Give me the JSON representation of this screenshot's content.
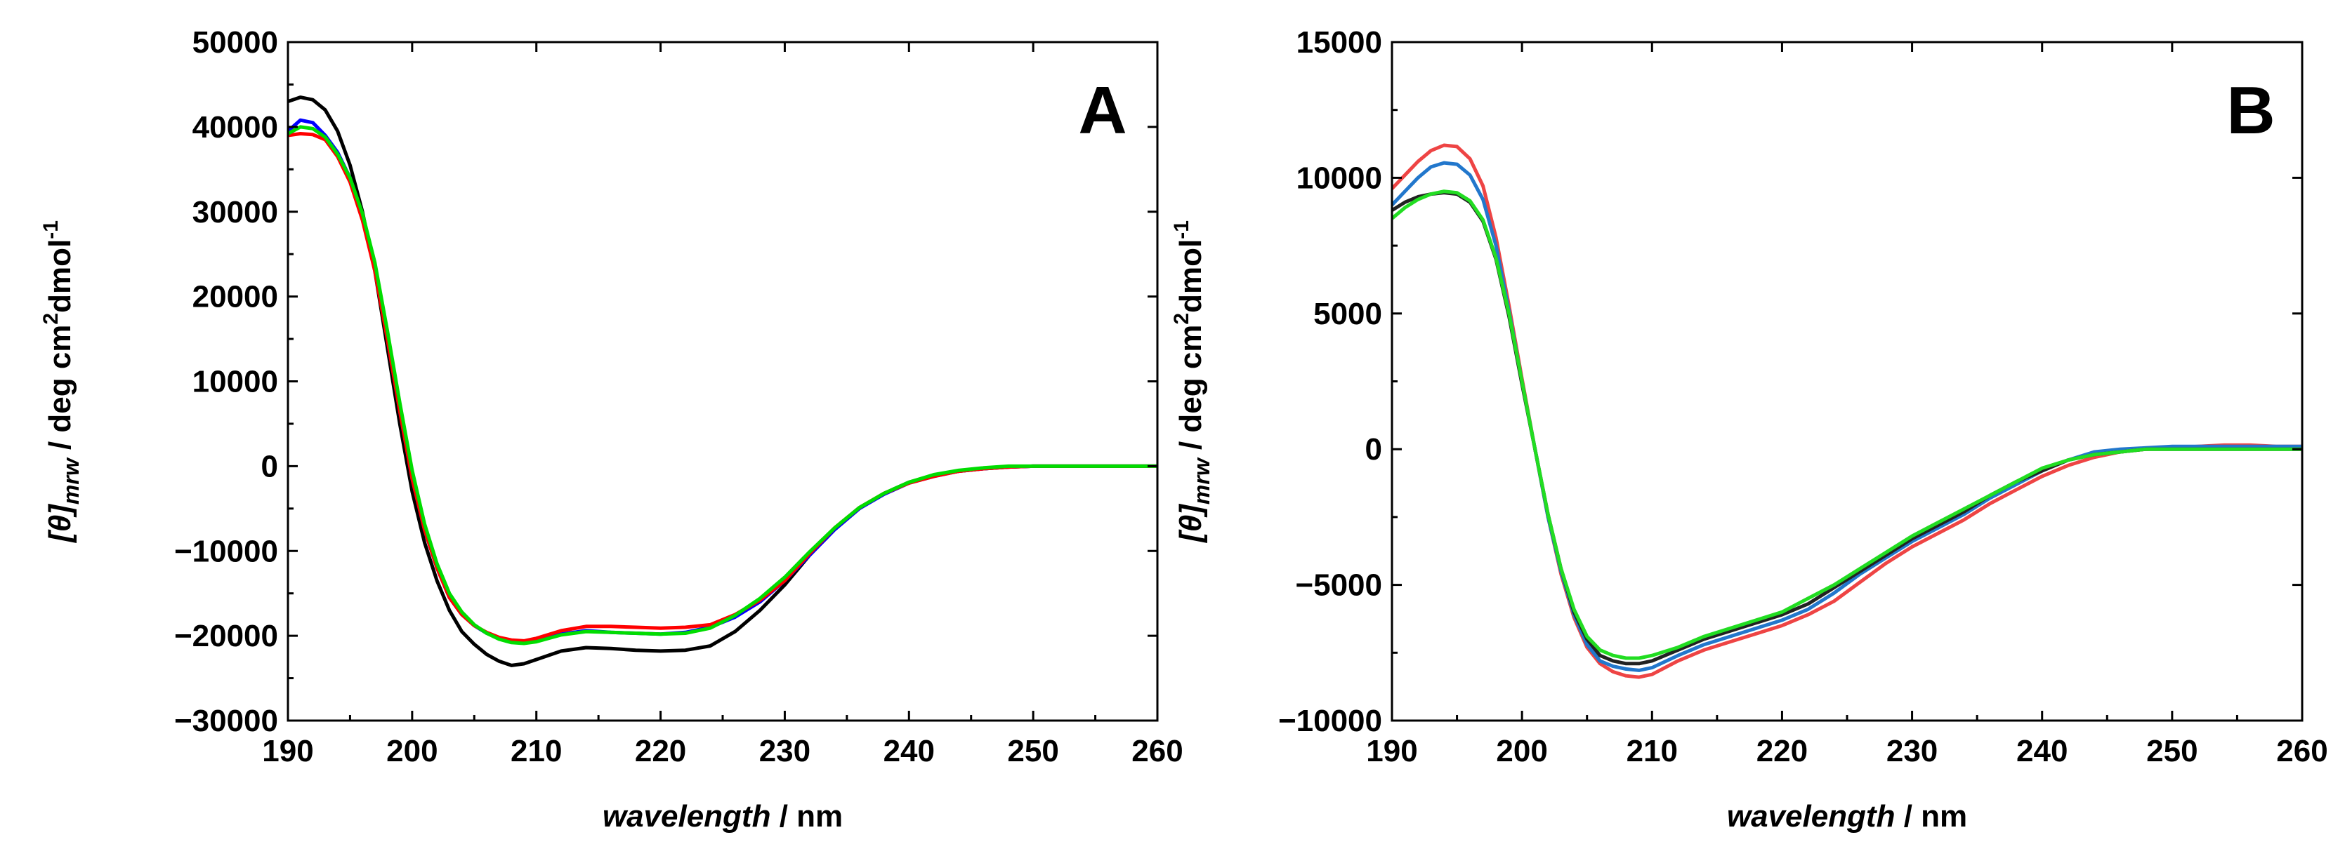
{
  "chart_data": [
    {
      "type": "line",
      "panel_label": "A",
      "xlabel": {
        "italic": "wavelength",
        "rest": " / nm"
      },
      "ylabel": {
        "italic": "[θ]",
        "subscript": "mrw",
        "rest": " / deg cm",
        "sup2": "2",
        "unit2": "dmol",
        "sup3": "-1"
      },
      "xlim": [
        190,
        260
      ],
      "ylim": [
        -30000,
        50000
      ],
      "xticks": [
        190,
        200,
        210,
        220,
        230,
        240,
        250,
        260
      ],
      "yticks": [
        -30000,
        -20000,
        -10000,
        0,
        10000,
        20000,
        30000,
        40000,
        50000
      ],
      "ytick_labels": [
        "−30000",
        "−20000",
        "−10000",
        "0",
        "10000",
        "20000",
        "30000",
        "40000",
        "50000"
      ],
      "series": [
        {
          "name": "black",
          "color": "#000000",
          "x": [
            190,
            191,
            192,
            193,
            194,
            195,
            196,
            197,
            198,
            199,
            200,
            201,
            202,
            203,
            204,
            205,
            206,
            207,
            208,
            209,
            210,
            212,
            214,
            216,
            218,
            220,
            222,
            224,
            226,
            228,
            230,
            232,
            234,
            236,
            238,
            240,
            242,
            244,
            246,
            248,
            250,
            255,
            260
          ],
          "y": [
            43000,
            43500,
            43200,
            42000,
            39500,
            35500,
            30000,
            23000,
            14000,
            5000,
            -3000,
            -9000,
            -13500,
            -17000,
            -19500,
            -21000,
            -22200,
            -23000,
            -23500,
            -23300,
            -22800,
            -21800,
            -21400,
            -21500,
            -21700,
            -21800,
            -21700,
            -21200,
            -19500,
            -17000,
            -14000,
            -10500,
            -7500,
            -5000,
            -3200,
            -1900,
            -1100,
            -600,
            -300,
            -100,
            0,
            0,
            0
          ]
        },
        {
          "name": "blue",
          "color": "#0000ff",
          "x": [
            190,
            191,
            192,
            193,
            194,
            195,
            196,
            197,
            198,
            199,
            200,
            201,
            202,
            203,
            204,
            205,
            206,
            207,
            208,
            209,
            210,
            212,
            214,
            216,
            218,
            220,
            222,
            224,
            226,
            228,
            230,
            232,
            234,
            236,
            238,
            240,
            242,
            244,
            246,
            248,
            250,
            255,
            260
          ],
          "y": [
            39500,
            40800,
            40500,
            39000,
            37000,
            34000,
            29500,
            23500,
            15000,
            6500,
            -1500,
            -7500,
            -12000,
            -15500,
            -17500,
            -18800,
            -19700,
            -20300,
            -20700,
            -20800,
            -20500,
            -19800,
            -19400,
            -19600,
            -19700,
            -19800,
            -19600,
            -19000,
            -17800,
            -16000,
            -13500,
            -10500,
            -7500,
            -5000,
            -3300,
            -2000,
            -1200,
            -600,
            -300,
            -100,
            0,
            0,
            0
          ]
        },
        {
          "name": "red",
          "color": "#ff0000",
          "x": [
            190,
            191,
            192,
            193,
            194,
            195,
            196,
            197,
            198,
            199,
            200,
            201,
            202,
            203,
            204,
            205,
            206,
            207,
            208,
            209,
            210,
            212,
            214,
            216,
            218,
            220,
            222,
            224,
            226,
            228,
            230,
            232,
            234,
            236,
            238,
            240,
            242,
            244,
            246,
            248,
            250,
            255,
            260
          ],
          "y": [
            39000,
            39200,
            39100,
            38500,
            36500,
            33500,
            29000,
            23000,
            15000,
            6500,
            -1500,
            -7500,
            -12000,
            -15500,
            -17500,
            -18800,
            -19600,
            -20200,
            -20500,
            -20600,
            -20300,
            -19400,
            -18900,
            -18900,
            -19000,
            -19100,
            -19000,
            -18700,
            -17500,
            -15800,
            -13500,
            -10300,
            -7300,
            -4900,
            -3200,
            -2000,
            -1200,
            -600,
            -300,
            -100,
            0,
            0,
            0
          ]
        },
        {
          "name": "green",
          "color": "#00dd00",
          "x": [
            190,
            191,
            192,
            193,
            194,
            195,
            196,
            197,
            198,
            199,
            200,
            201,
            202,
            203,
            204,
            205,
            206,
            207,
            208,
            209,
            210,
            212,
            214,
            216,
            218,
            220,
            222,
            224,
            226,
            228,
            230,
            232,
            234,
            236,
            238,
            240,
            242,
            244,
            246,
            248,
            250,
            255,
            260
          ],
          "y": [
            39200,
            40000,
            39800,
            38800,
            36800,
            34000,
            29800,
            24000,
            16000,
            7500,
            -500,
            -6800,
            -11500,
            -15000,
            -17200,
            -18700,
            -19700,
            -20400,
            -20800,
            -20900,
            -20700,
            -19900,
            -19500,
            -19600,
            -19700,
            -19800,
            -19700,
            -19100,
            -17600,
            -15600,
            -13100,
            -10100,
            -7300,
            -4900,
            -3200,
            -1900,
            -1000,
            -500,
            -200,
            0,
            0,
            0,
            0
          ]
        }
      ]
    },
    {
      "type": "line",
      "panel_label": "B",
      "xlabel": {
        "italic": "wavelength",
        "rest": " / nm"
      },
      "ylabel": {
        "italic": "[θ]",
        "subscript": "mrw",
        "rest": " / deg cm",
        "sup2": "2",
        "unit2": "dmol",
        "sup3": "-1"
      },
      "xlim": [
        190,
        260
      ],
      "ylim": [
        -10000,
        15000
      ],
      "xticks": [
        190,
        200,
        210,
        220,
        230,
        240,
        250,
        260
      ],
      "yticks": [
        -10000,
        -5000,
        0,
        5000,
        10000,
        15000
      ],
      "ytick_labels": [
        "−10000",
        "−5000",
        "0",
        "5000",
        "10000",
        "15000"
      ],
      "series": [
        {
          "name": "red",
          "color": "#ee4444",
          "x": [
            190,
            191,
            192,
            193,
            194,
            195,
            196,
            197,
            198,
            199,
            200,
            201,
            202,
            203,
            204,
            205,
            206,
            207,
            208,
            209,
            210,
            212,
            214,
            216,
            218,
            220,
            222,
            224,
            226,
            228,
            230,
            232,
            234,
            236,
            238,
            240,
            242,
            244,
            246,
            248,
            250,
            252,
            254,
            256,
            258,
            260
          ],
          "y": [
            9600,
            10100,
            10600,
            11000,
            11200,
            11150,
            10700,
            9700,
            7800,
            5300,
            2600,
            0,
            -2500,
            -4600,
            -6200,
            -7300,
            -7900,
            -8200,
            -8350,
            -8400,
            -8300,
            -7800,
            -7400,
            -7100,
            -6800,
            -6500,
            -6100,
            -5600,
            -4900,
            -4200,
            -3600,
            -3100,
            -2600,
            -2000,
            -1500,
            -1000,
            -600,
            -300,
            -100,
            0,
            50,
            100,
            150,
            150,
            100,
            100
          ]
        },
        {
          "name": "blue",
          "color": "#2277cc",
          "x": [
            190,
            191,
            192,
            193,
            194,
            195,
            196,
            197,
            198,
            199,
            200,
            201,
            202,
            203,
            204,
            205,
            206,
            207,
            208,
            209,
            210,
            212,
            214,
            216,
            218,
            220,
            222,
            224,
            226,
            228,
            230,
            232,
            234,
            236,
            238,
            240,
            242,
            244,
            246,
            248,
            250,
            252,
            254,
            256,
            258,
            260
          ],
          "y": [
            9000,
            9500,
            10000,
            10400,
            10550,
            10500,
            10100,
            9200,
            7500,
            5100,
            2500,
            0,
            -2500,
            -4500,
            -6100,
            -7200,
            -7800,
            -8000,
            -8100,
            -8150,
            -8050,
            -7600,
            -7200,
            -6900,
            -6600,
            -6300,
            -5900,
            -5300,
            -4600,
            -4000,
            -3400,
            -2900,
            -2400,
            -1800,
            -1300,
            -800,
            -400,
            -100,
            0,
            50,
            100,
            100,
            100,
            100,
            100,
            100
          ]
        },
        {
          "name": "black",
          "color": "#222222",
          "x": [
            190,
            191,
            192,
            193,
            194,
            195,
            196,
            197,
            198,
            199,
            200,
            201,
            202,
            203,
            204,
            205,
            206,
            207,
            208,
            209,
            210,
            212,
            214,
            216,
            218,
            220,
            222,
            224,
            226,
            228,
            230,
            232,
            234,
            236,
            238,
            240,
            242,
            244,
            246,
            248,
            250,
            252,
            254,
            256,
            258,
            260
          ],
          "y": [
            8800,
            9100,
            9300,
            9400,
            9450,
            9400,
            9100,
            8400,
            7000,
            4900,
            2400,
            0,
            -2400,
            -4400,
            -6000,
            -7000,
            -7600,
            -7800,
            -7900,
            -7900,
            -7800,
            -7400,
            -7000,
            -6700,
            -6400,
            -6100,
            -5700,
            -5100,
            -4500,
            -3900,
            -3300,
            -2800,
            -2300,
            -1700,
            -1200,
            -800,
            -400,
            -200,
            -100,
            0,
            0,
            0,
            0,
            0,
            0,
            0
          ]
        },
        {
          "name": "green",
          "color": "#22dd22",
          "x": [
            190,
            191,
            192,
            193,
            194,
            195,
            196,
            197,
            198,
            199,
            200,
            201,
            202,
            203,
            204,
            205,
            206,
            207,
            208,
            209,
            210,
            212,
            214,
            216,
            218,
            220,
            222,
            224,
            226,
            228,
            230,
            232,
            234,
            236,
            238,
            240,
            242,
            244,
            246,
            248,
            250,
            252,
            254,
            256,
            258,
            260
          ],
          "y": [
            8500,
            8900,
            9200,
            9400,
            9500,
            9450,
            9150,
            8450,
            7050,
            5000,
            2500,
            0,
            -2400,
            -4400,
            -5900,
            -6900,
            -7400,
            -7600,
            -7700,
            -7700,
            -7600,
            -7300,
            -6900,
            -6600,
            -6300,
            -6000,
            -5500,
            -5000,
            -4400,
            -3800,
            -3200,
            -2700,
            -2200,
            -1700,
            -1200,
            -700,
            -400,
            -200,
            -100,
            0,
            0,
            0,
            0,
            0,
            0,
            0
          ]
        }
      ]
    }
  ]
}
